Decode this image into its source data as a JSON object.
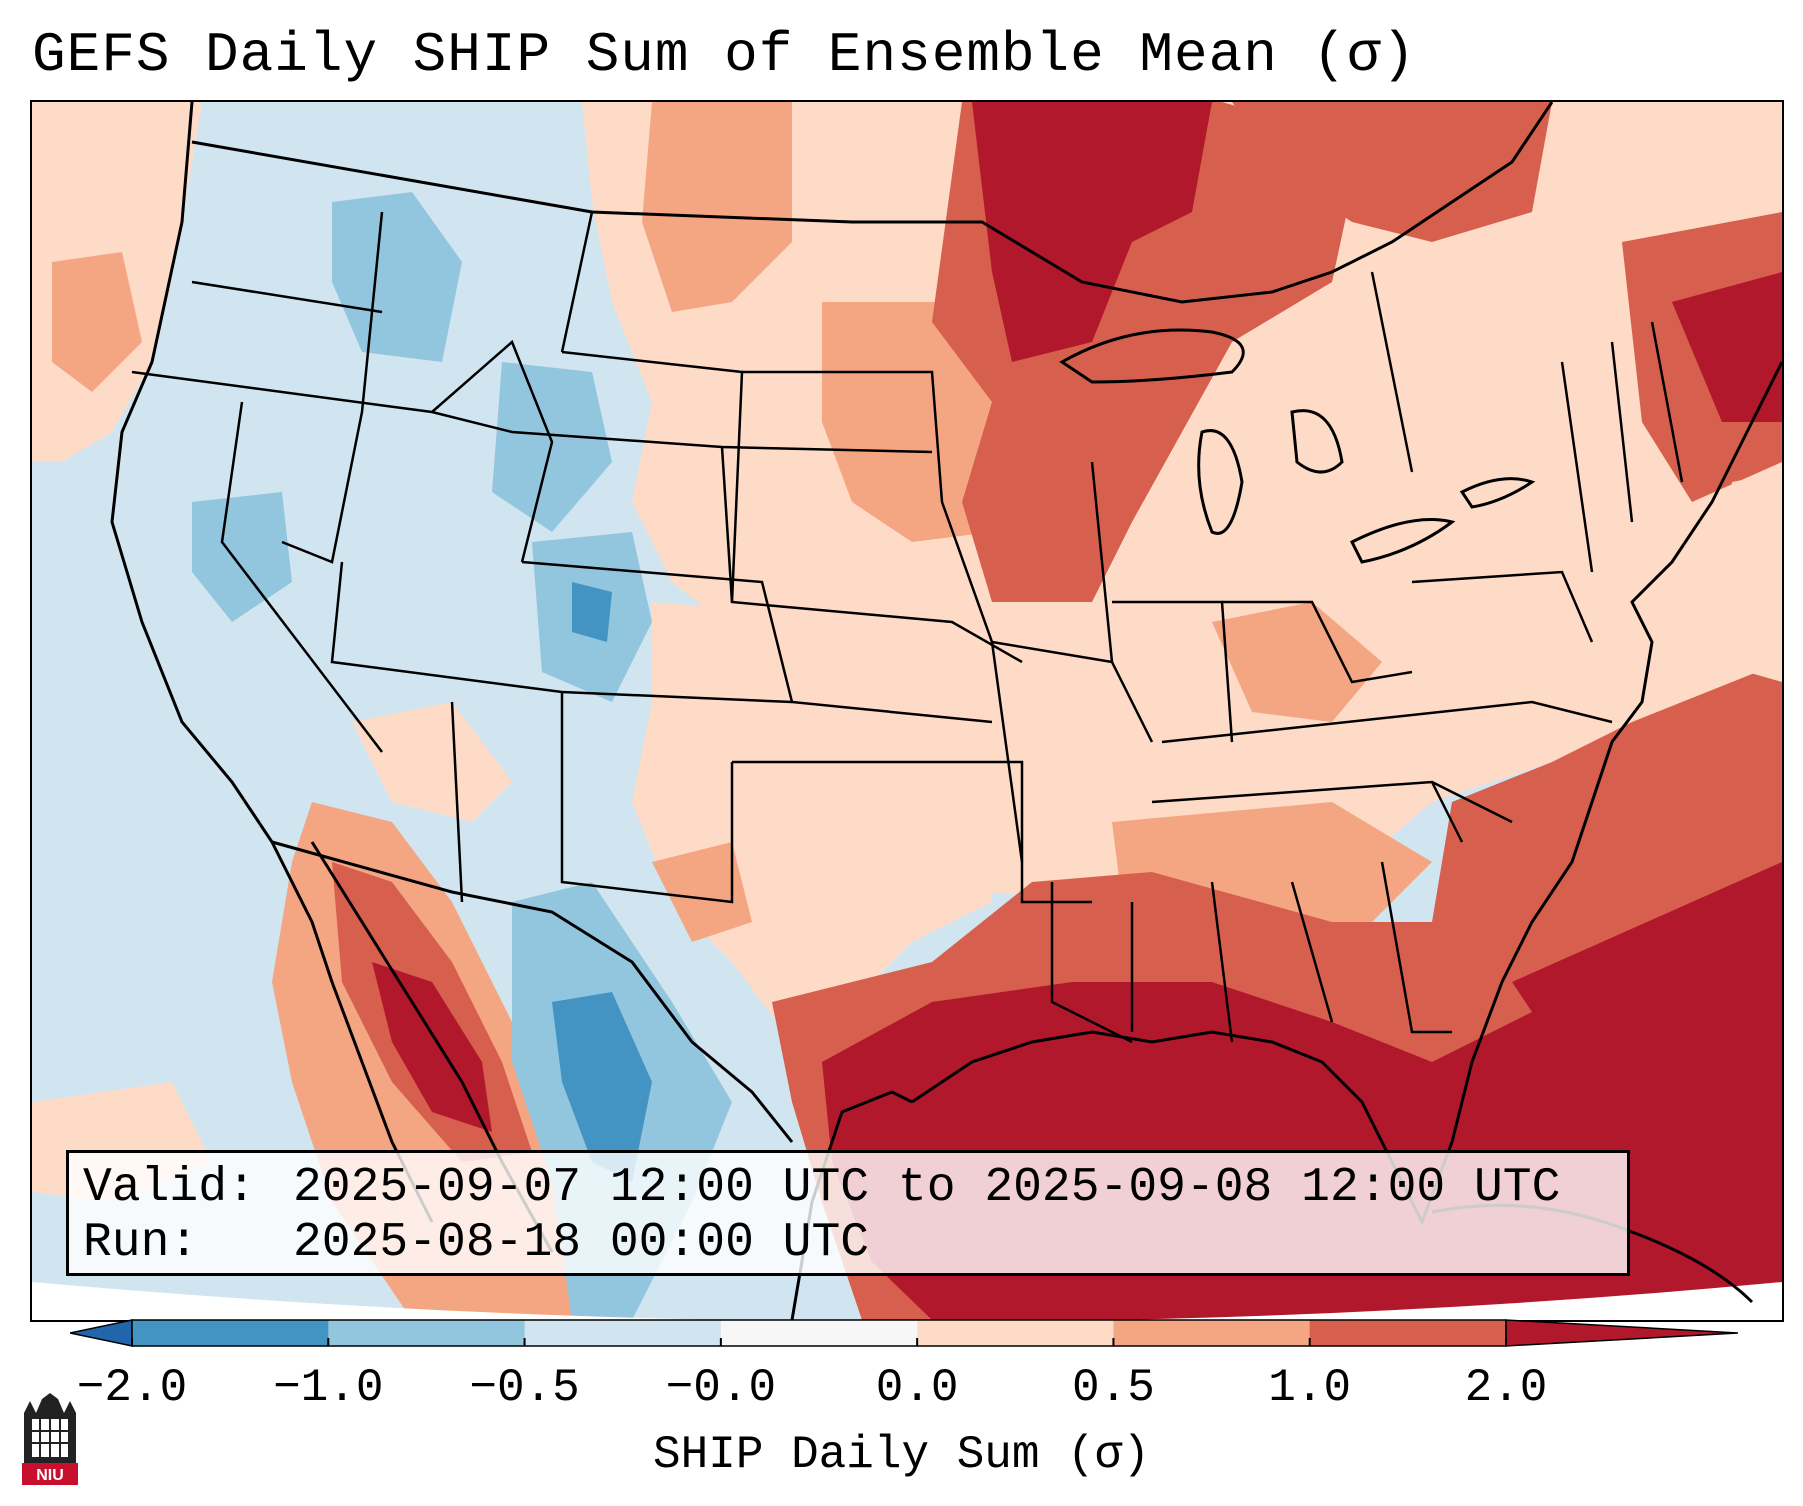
{
  "title": "GEFS Daily SHIP Sum of Ensemble Mean (σ)",
  "info": {
    "valid_label": "Valid:",
    "valid_value": "2025-09-07 12:00 UTC to 2025-09-08 12:00 UTC",
    "run_label": "Run:",
    "run_value": "2025-08-18 00:00 UTC"
  },
  "colorbar": {
    "label": "SHIP Daily Sum (σ)",
    "ticks": [
      "−2.0",
      "−1.0",
      "−0.5",
      "−0.0",
      "0.0",
      "0.5",
      "1.0",
      "2.0"
    ],
    "bins": [
      {
        "from": -2.0,
        "to": -1.0,
        "color": "#4393c3"
      },
      {
        "from": -1.0,
        "to": -0.5,
        "color": "#92c5de"
      },
      {
        "from": -0.5,
        "to": 0.0,
        "color": "#d1e5f0"
      },
      {
        "from": 0.0,
        "to": 0.0,
        "color": "#f7f7f7"
      },
      {
        "from": 0.0,
        "to": 0.5,
        "color": "#fddbc7"
      },
      {
        "from": 0.5,
        "to": 1.0,
        "color": "#f4a582"
      },
      {
        "from": 1.0,
        "to": 2.0,
        "color": "#d6604d"
      }
    ],
    "under_color": "#2166ac",
    "over_color": "#b2182b",
    "extend": "both"
  },
  "map": {
    "projection": "Lambert Conformal",
    "region": "CONUS",
    "background_anomaly_color": "#d1e5f0",
    "boundary_color": "#000000"
  },
  "logo": {
    "text": "NIU",
    "color": "#c8102e"
  }
}
